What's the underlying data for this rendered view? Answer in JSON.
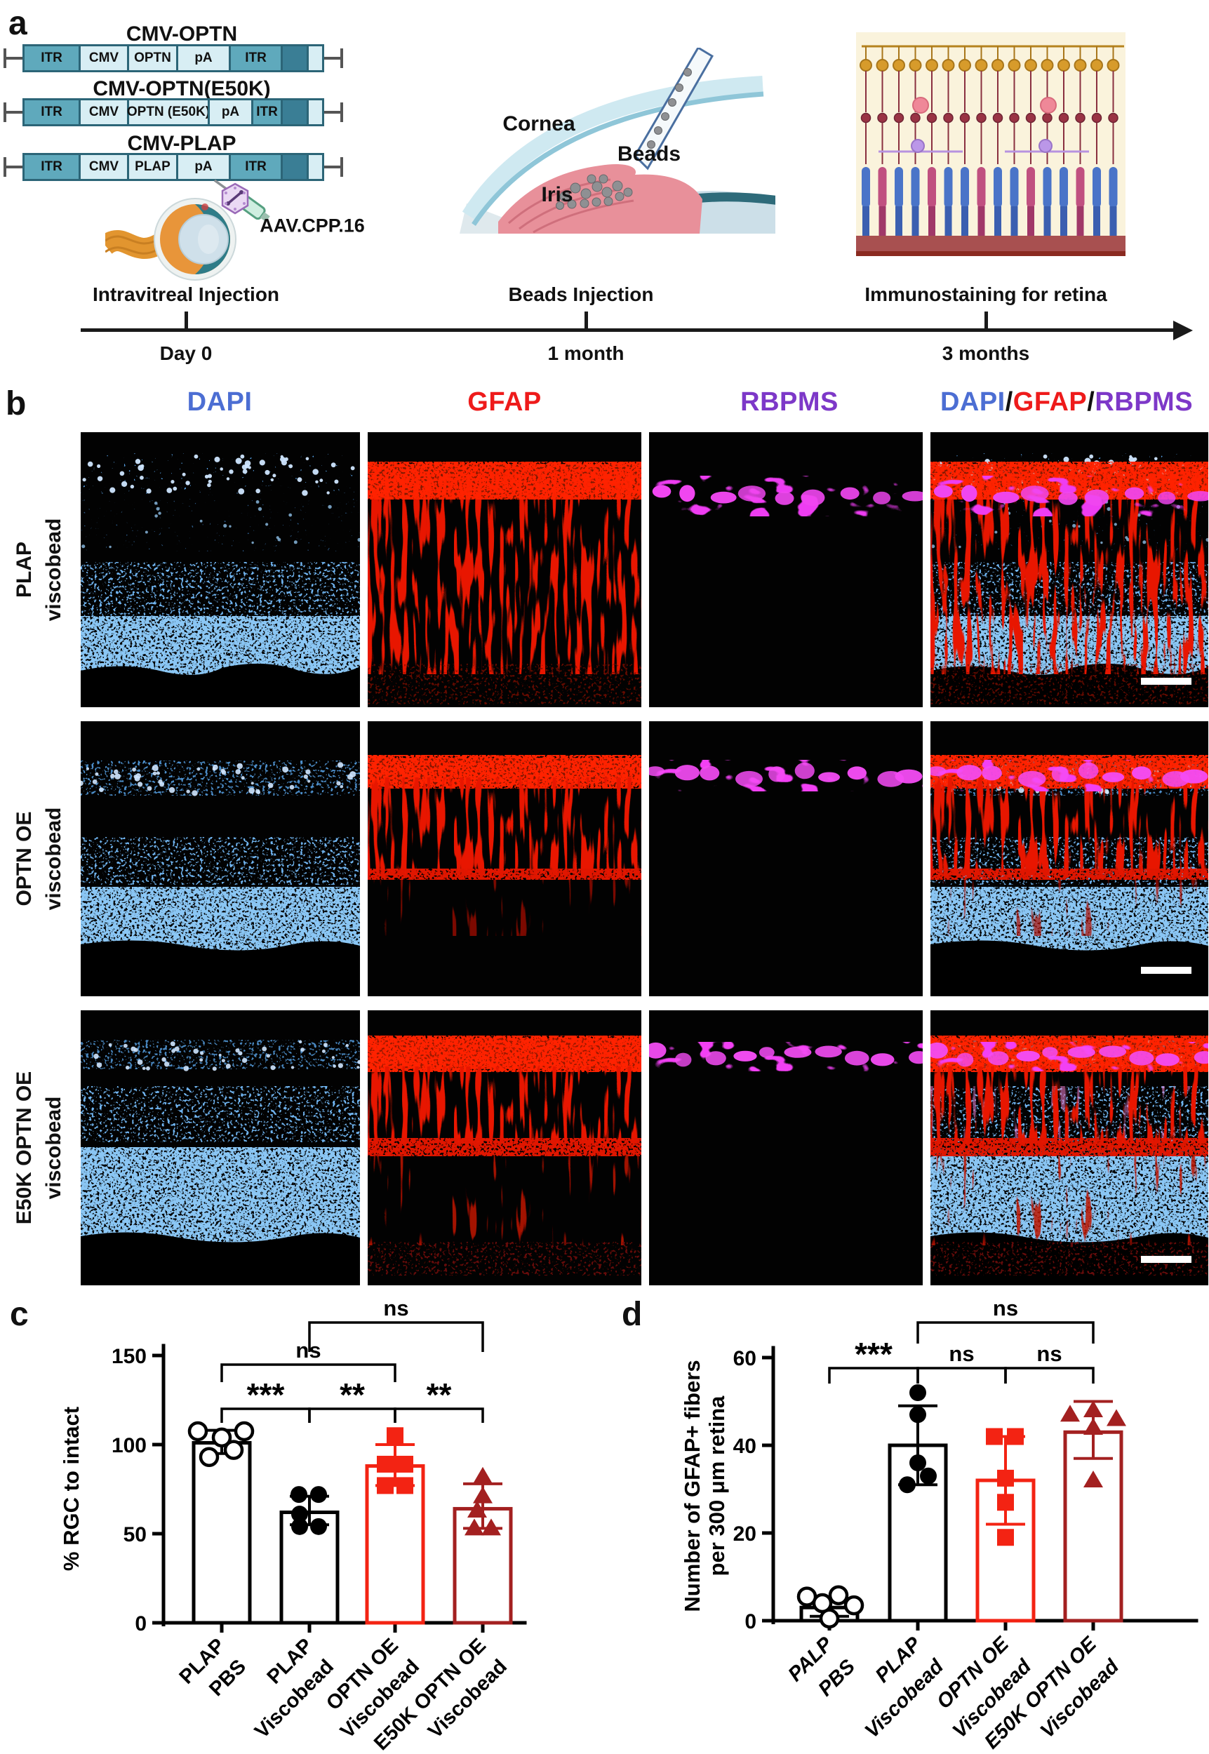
{
  "panel_a": {
    "label": "a",
    "constructs": [
      {
        "title": "CMV-OPTN",
        "segments": [
          {
            "label": "ITR",
            "k": "itr",
            "w": 83
          },
          {
            "label": "CMV",
            "k": "pale",
            "w": 72
          },
          {
            "label": "OPTN",
            "k": "pale",
            "w": 73
          },
          {
            "label": "pA",
            "k": "pale",
            "w": 78
          },
          {
            "label": "ITR",
            "k": "itr",
            "w": 77
          },
          {
            "label": "",
            "k": "dark",
            "w": 40
          },
          {
            "label": "",
            "k": "pale",
            "w": 25
          }
        ]
      },
      {
        "title": "CMV-OPTN(E50K)",
        "segments": [
          {
            "label": "ITR",
            "k": "itr",
            "w": 83
          },
          {
            "label": "CMV",
            "k": "pale",
            "w": 72
          },
          {
            "label": "OPTN (E50K)",
            "k": "pale",
            "w": 118
          },
          {
            "label": "pA",
            "k": "pale",
            "w": 65
          },
          {
            "label": "ITR",
            "k": "itr",
            "w": 45
          },
          {
            "label": "",
            "k": "dark",
            "w": 40
          },
          {
            "label": "",
            "k": "pale",
            "w": 25
          }
        ]
      },
      {
        "title": "CMV-PLAP",
        "segments": [
          {
            "label": "ITR",
            "k": "itr",
            "w": 83
          },
          {
            "label": "CMV",
            "k": "pale",
            "w": 72
          },
          {
            "label": "PLAP",
            "k": "pale",
            "w": 73
          },
          {
            "label": "pA",
            "k": "pale",
            "w": 78
          },
          {
            "label": "ITR",
            "k": "itr",
            "w": 77
          },
          {
            "label": "",
            "k": "dark",
            "w": 40
          },
          {
            "label": "",
            "k": "pale",
            "w": 25
          }
        ]
      }
    ],
    "virus_label": "AAV.CPP.16",
    "eye_caption": "Intravitreal Injection",
    "cornea_label": "Cornea",
    "beads_label": "Beads",
    "iris_label": "Iris",
    "beads_caption": "Beads Injection",
    "retina_caption": "Immunostaining for retina",
    "timeline": [
      {
        "time": "Day 0"
      },
      {
        "time": "1 month"
      },
      {
        "time": "3 months"
      }
    ]
  },
  "panel_b": {
    "label": "b",
    "columns": [
      {
        "label": "DAPI",
        "color": "#4c6ed3"
      },
      {
        "label": "GFAP",
        "color": "#ee1b1b"
      },
      {
        "label": "RBPMS",
        "color": "#7d38c8"
      }
    ],
    "merge_parts": [
      {
        "label": "DAPI",
        "color": "#4c6ed3"
      },
      {
        "label": "/",
        "color": "#111111"
      },
      {
        "label": "GFAP",
        "color": "#ee1b1b"
      },
      {
        "label": "/",
        "color": "#111111"
      },
      {
        "label": "RBPMS",
        "color": "#7d38c8"
      }
    ],
    "rows": [
      {
        "label_lines": [
          "PLAP",
          "viscobead"
        ]
      },
      {
        "label_lines": [
          "OPTN OE",
          "viscobead"
        ]
      },
      {
        "label_lines": [
          "E50K OPTN OE",
          "viscobead"
        ]
      }
    ]
  },
  "panel_c": {
    "label": "c",
    "chart_data": {
      "type": "bar",
      "ylabel": "% RGC to intact",
      "ylim": [
        0,
        150
      ],
      "yticks": [
        0,
        50,
        100,
        150
      ],
      "grid": false,
      "categories": [
        [
          "PLAP",
          "PBS"
        ],
        [
          "PLAP",
          "Viscobead"
        ],
        [
          "OPTN OE",
          "Viscobead"
        ],
        [
          "E50K OPTN OE",
          "Viscobead"
        ]
      ],
      "series": [
        {
          "name": "PLAP PBS",
          "mean": 101,
          "err_low": 95,
          "err_high": 108,
          "color": "#000000",
          "marker": "circle-open",
          "points": [
            {
              "v": 107.5,
              "dx": -34
            },
            {
              "v": 107.5,
              "dx": 32
            },
            {
              "v": 104,
              "dx": 0
            },
            {
              "v": 97,
              "dx": 17
            },
            {
              "v": 93,
              "dx": -18
            }
          ]
        },
        {
          "name": "PLAP Viscobead",
          "mean": 62,
          "err_low": 55,
          "err_high": 71,
          "color": "#000000",
          "marker": "circle",
          "points": [
            {
              "v": 72,
              "dx": -15
            },
            {
              "v": 72,
              "dx": 13
            },
            {
              "v": 61,
              "dx": -14
            },
            {
              "v": 54,
              "dx": -14
            },
            {
              "v": 54,
              "dx": 13
            }
          ]
        },
        {
          "name": "OPTN OE Viscobead",
          "mean": 88,
          "err_low": 77,
          "err_high": 100,
          "color": "#f32313",
          "marker": "square",
          "points": [
            {
              "v": 105,
              "dx": 0
            },
            {
              "v": 89,
              "dx": -14
            },
            {
              "v": 89,
              "dx": 14
            },
            {
              "v": 77,
              "dx": -14
            },
            {
              "v": 77,
              "dx": 14
            }
          ]
        },
        {
          "name": "E50K OPTN OE Viscobead",
          "mean": 64,
          "err_low": 53,
          "err_high": 78,
          "color": "#a32020",
          "marker": "triangle",
          "points": [
            {
              "v": 82,
              "dx": 0
            },
            {
              "v": 71,
              "dx": 0
            },
            {
              "v": 63,
              "dx": -8
            },
            {
              "v": 53,
              "dx": -12
            },
            {
              "v": 53,
              "dx": 12
            }
          ]
        }
      ],
      "significance": [
        {
          "from": 0,
          "to": 1,
          "label": "***"
        },
        {
          "from": 1,
          "to": 2,
          "label": "**"
        },
        {
          "from": 2,
          "to": 3,
          "label": "**"
        },
        {
          "from": 0,
          "to": 2,
          "label": "ns"
        },
        {
          "from": 1,
          "to": 3,
          "label": "ns"
        }
      ]
    }
  },
  "panel_d": {
    "label": "d",
    "chart_data": {
      "type": "bar",
      "ylabel": [
        "Number of GFAP+ fibers",
        "per 300 μm retina"
      ],
      "ylim": [
        0,
        60
      ],
      "yticks": [
        0,
        20,
        40,
        60
      ],
      "grid": false,
      "categories": [
        [
          "PALP",
          "PBS"
        ],
        [
          "PLAP",
          "Viscobead"
        ],
        [
          "OPTN OE",
          "Viscobead"
        ],
        [
          "E50K OPTN OE",
          "Viscobead"
        ]
      ],
      "series": [
        {
          "name": "PALP PBS",
          "mean": 3,
          "err_low": 1,
          "err_high": 5,
          "color": "#000000",
          "marker": "circle-open",
          "points": [
            {
              "v": 5.5,
              "dx": -32
            },
            {
              "v": 5.8,
              "dx": 13
            },
            {
              "v": 4,
              "dx": -10
            },
            {
              "v": 3.5,
              "dx": 35
            },
            {
              "v": 0.5,
              "dx": 0
            }
          ]
        },
        {
          "name": "PLAP Viscobead",
          "mean": 40,
          "err_low": 31,
          "err_high": 49,
          "color": "#000000",
          "marker": "circle",
          "points": [
            {
              "v": 52,
              "dx": 0
            },
            {
              "v": 47,
              "dx": 0
            },
            {
              "v": 36,
              "dx": 0
            },
            {
              "v": 33,
              "dx": 15
            },
            {
              "v": 31,
              "dx": -15
            }
          ]
        },
        {
          "name": "OPTN OE Viscobead",
          "mean": 32,
          "err_low": 22,
          "err_high": 42,
          "color": "#f32313",
          "marker": "square",
          "points": [
            {
              "v": 42,
              "dx": -16
            },
            {
              "v": 42,
              "dx": 14
            },
            {
              "v": 32.5,
              "dx": 0
            },
            {
              "v": 27,
              "dx": 0
            },
            {
              "v": 19,
              "dx": 0
            }
          ]
        },
        {
          "name": "E50K OPTN OE Viscobead",
          "mean": 43,
          "err_low": 37,
          "err_high": 50,
          "color": "#a32020",
          "marker": "triangle",
          "points": [
            {
              "v": 47,
              "dx": -33
            },
            {
              "v": 48,
              "dx": 0
            },
            {
              "v": 46,
              "dx": 33
            },
            {
              "v": 44,
              "dx": 0
            },
            {
              "v": 32,
              "dx": 0
            }
          ]
        }
      ],
      "significance": [
        {
          "from": 0,
          "to": 1,
          "label": "***"
        },
        {
          "from": 1,
          "to": 2,
          "label": "ns"
        },
        {
          "from": 2,
          "to": 3,
          "label": "ns"
        },
        {
          "from": 1,
          "to": 3,
          "label": "ns"
        }
      ]
    }
  }
}
